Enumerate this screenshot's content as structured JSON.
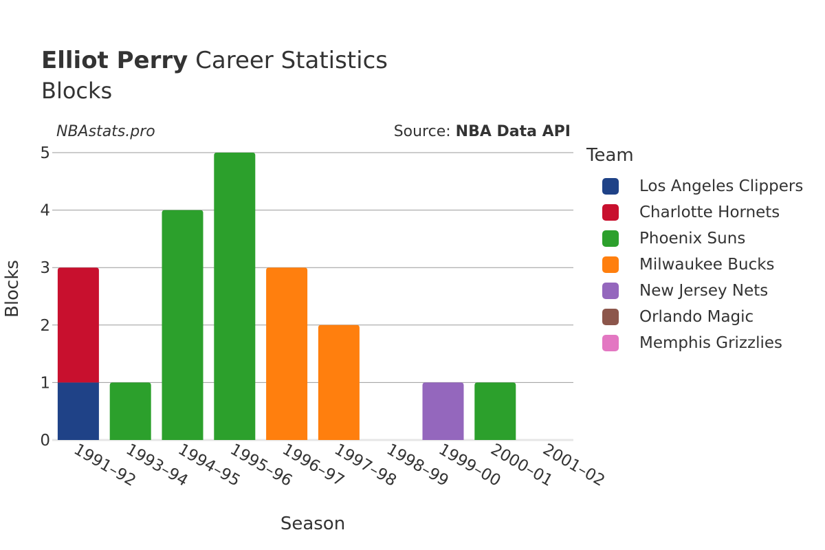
{
  "header": {
    "title_bold": "Elliot Perry",
    "title_rest": " Career Statistics",
    "subtitle": "Blocks",
    "credit": "NBAstats.pro",
    "source_prefix": "Source: ",
    "source_name": "NBA Data API"
  },
  "legend": {
    "title": "Team",
    "items": [
      {
        "label": "Los Angeles Clippers",
        "color": "#1f4287"
      },
      {
        "label": "Charlotte Hornets",
        "color": "#c8102e"
      },
      {
        "label": "Phoenix Suns",
        "color": "#2ca02c"
      },
      {
        "label": "Milwaukee Bucks",
        "color": "#ff7f0e"
      },
      {
        "label": "New Jersey Nets",
        "color": "#9467bd"
      },
      {
        "label": "Orlando Magic",
        "color": "#8c564b"
      },
      {
        "label": "Memphis Grizzlies",
        "color": "#e377c2"
      }
    ]
  },
  "chart_data": {
    "type": "bar",
    "stacked": true,
    "xlabel": "Season",
    "ylabel": "Blocks",
    "ylim": [
      0,
      5
    ],
    "yticks": [
      0,
      1,
      2,
      3,
      4,
      5
    ],
    "grid": true,
    "legend_position": "right",
    "categories": [
      "1991–92",
      "1993–94",
      "1994–95",
      "1995–96",
      "1996–97",
      "1997–98",
      "1998–99",
      "1999–00",
      "2000–01",
      "2001–02"
    ],
    "series": [
      {
        "name": "Los Angeles Clippers",
        "color": "#1f4287",
        "values": [
          1,
          0,
          0,
          0,
          0,
          0,
          0,
          0,
          0,
          0
        ]
      },
      {
        "name": "Charlotte Hornets",
        "color": "#c8102e",
        "values": [
          2,
          0,
          0,
          0,
          0,
          0,
          0,
          0,
          0,
          0
        ]
      },
      {
        "name": "Phoenix Suns",
        "color": "#2ca02c",
        "values": [
          0,
          1,
          4,
          5,
          0,
          0,
          0,
          0,
          1,
          0
        ]
      },
      {
        "name": "Milwaukee Bucks",
        "color": "#ff7f0e",
        "values": [
          0,
          0,
          0,
          0,
          3,
          2,
          0,
          0,
          0,
          0
        ]
      },
      {
        "name": "New Jersey Nets",
        "color": "#9467bd",
        "values": [
          0,
          0,
          0,
          0,
          0,
          0,
          0,
          1,
          0,
          0
        ]
      },
      {
        "name": "Orlando Magic",
        "color": "#8c564b",
        "values": [
          0,
          0,
          0,
          0,
          0,
          0,
          0,
          0,
          0,
          0
        ]
      },
      {
        "name": "Memphis Grizzlies",
        "color": "#e377c2",
        "values": [
          0,
          0,
          0,
          0,
          0,
          0,
          0,
          0,
          0,
          0
        ]
      }
    ]
  }
}
